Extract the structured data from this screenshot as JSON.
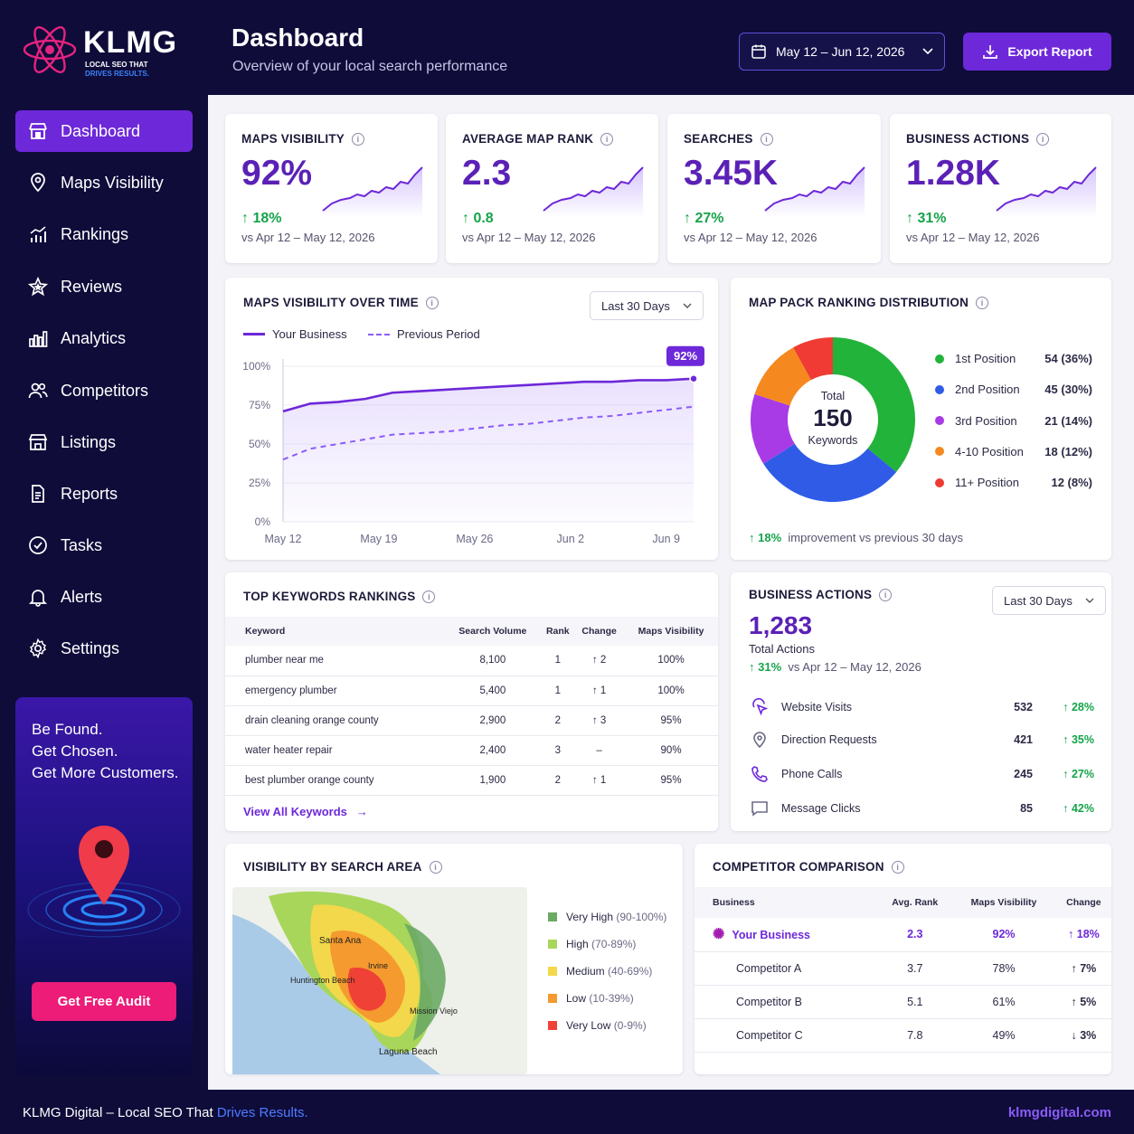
{
  "brand": {
    "name": "KLMG",
    "tag1": "LOCAL SEO THAT",
    "tag2": "DRIVES RESULTS."
  },
  "header": {
    "title": "Dashboard",
    "subtitle": "Overview of your local search performance",
    "date_range": "May 12 – Jun 12, 2026",
    "export_label": "Export Report"
  },
  "sidebar": {
    "items": [
      {
        "label": "Dashboard",
        "icon": "dashboard-icon"
      },
      {
        "label": "Maps Visibility",
        "icon": "map-pin-icon"
      },
      {
        "label": "Rankings",
        "icon": "rankings-icon"
      },
      {
        "label": "Reviews",
        "icon": "star-icon"
      },
      {
        "label": "Analytics",
        "icon": "analytics-icon"
      },
      {
        "label": "Competitors",
        "icon": "users-icon"
      },
      {
        "label": "Listings",
        "icon": "store-icon"
      },
      {
        "label": "Reports",
        "icon": "document-icon"
      },
      {
        "label": "Tasks",
        "icon": "check-circle-icon"
      },
      {
        "label": "Alerts",
        "icon": "bell-icon"
      },
      {
        "label": "Settings",
        "icon": "gear-icon"
      }
    ],
    "promo": {
      "line1": "Be Found.",
      "line2": "Get Chosen.",
      "line3": "Get More Customers.",
      "cta": "Get Free Audit"
    }
  },
  "kpis": [
    {
      "label": "MAPS VISIBILITY",
      "value": "92%",
      "change": "18%",
      "compare": "vs Apr 12 – May 12, 2026"
    },
    {
      "label": "AVERAGE MAP RANK",
      "value": "2.3",
      "change": "0.8",
      "compare": "vs Apr 12 – May 12, 2026"
    },
    {
      "label": "SEARCHES",
      "value": "3.45K",
      "change": "27%",
      "compare": "vs Apr 12 – May 12, 2026"
    },
    {
      "label": "BUSINESS ACTIONS",
      "value": "1.28K",
      "change": "31%",
      "compare": "vs Apr 12 – May 12, 2026"
    }
  ],
  "visibility_chart": {
    "title": "MAPS VISIBILITY OVER TIME",
    "range": "Last 30 Days",
    "legend_current": "Your Business",
    "legend_previous": "Previous Period",
    "end_label": "92%"
  },
  "chart_data": {
    "type": "line",
    "x": [
      "May 12",
      "May 14",
      "May 16",
      "May 18",
      "May 20",
      "May 22",
      "May 24",
      "May 26",
      "May 28",
      "May 30",
      "Jun 1",
      "Jun 3",
      "Jun 5",
      "Jun 7",
      "Jun 9",
      "Jun 11"
    ],
    "x_ticks": [
      "May 12",
      "May 19",
      "May 26",
      "Jun 2",
      "Jun 9"
    ],
    "y_ticks": [
      "0%",
      "25%",
      "50%",
      "75%",
      "100%"
    ],
    "ylim": [
      0,
      100
    ],
    "series": [
      {
        "name": "Your Business",
        "values": [
          71,
          76,
          77,
          79,
          83,
          84,
          85,
          86,
          87,
          88,
          89,
          90,
          90,
          91,
          91,
          92
        ]
      },
      {
        "name": "Previous Period",
        "values": [
          40,
          47,
          50,
          53,
          56,
          57,
          58,
          60,
          62,
          63,
          65,
          67,
          68,
          70,
          72,
          74
        ]
      }
    ]
  },
  "distribution": {
    "title": "MAP PACK RANKING DISTRIBUTION",
    "total_label": "Total",
    "total": "150",
    "total_unit": "Keywords",
    "items": [
      {
        "label": "1st Position",
        "value": "54 (36%)",
        "count": 54,
        "color": "#22b33a"
      },
      {
        "label": "2nd Position",
        "value": "45 (30%)",
        "count": 45,
        "color": "#2f5be7"
      },
      {
        "label": "3rd Position",
        "value": "21 (14%)",
        "count": 21,
        "color": "#a83be6"
      },
      {
        "label": "4-10 Position",
        "value": "18 (12%)",
        "count": 18,
        "color": "#f5891f"
      },
      {
        "label": "11+ Position",
        "value": "12 (8%)",
        "count": 12,
        "color": "#ef3b33"
      }
    ],
    "improvement": "18%",
    "improvement_text": "improvement vs previous 30 days"
  },
  "keywords": {
    "title": "TOP KEYWORDS RANKINGS",
    "headers": [
      "Keyword",
      "Search Volume",
      "Rank",
      "Change",
      "Maps Visibility"
    ],
    "rows": [
      {
        "keyword": "plumber near me",
        "volume": "8,100",
        "rank": "1",
        "change": "↑ 2",
        "visibility": "100%"
      },
      {
        "keyword": "emergency plumber",
        "volume": "5,400",
        "rank": "1",
        "change": "↑ 1",
        "visibility": "100%"
      },
      {
        "keyword": "drain cleaning orange county",
        "volume": "2,900",
        "rank": "2",
        "change": "↑ 3",
        "visibility": "95%"
      },
      {
        "keyword": "water heater repair",
        "volume": "2,400",
        "rank": "3",
        "change": "–",
        "visibility": "90%"
      },
      {
        "keyword": "best plumber orange county",
        "volume": "1,900",
        "rank": "2",
        "change": "↑ 1",
        "visibility": "95%"
      }
    ],
    "view_all": "View All Keywords"
  },
  "business_actions": {
    "title": "BUSINESS ACTIONS",
    "range": "Last 30 Days",
    "total": "1,283",
    "total_label": "Total Actions",
    "change": "31%",
    "compare": "vs Apr 12 – May 12, 2026",
    "rows": [
      {
        "label": "Website Visits",
        "value": "532",
        "change": "28%",
        "icon": "cursor-click-icon"
      },
      {
        "label": "Direction Requests",
        "value": "421",
        "change": "35%",
        "icon": "map-pin-icon"
      },
      {
        "label": "Phone Calls",
        "value": "245",
        "change": "27%",
        "icon": "phone-icon"
      },
      {
        "label": "Message Clicks",
        "value": "85",
        "change": "42%",
        "icon": "message-icon"
      }
    ]
  },
  "search_area": {
    "title": "VISIBILITY BY SEARCH AREA",
    "map_labels": [
      "Santa Ana",
      "Huntington Beach",
      "Irvine",
      "Laguna Beach",
      "Mission Viejo"
    ],
    "legend": [
      {
        "label": "Very High",
        "range": "(90-100%)",
        "color": "#6aaa64"
      },
      {
        "label": "High",
        "range": "(70-89%)",
        "color": "#a8d65a"
      },
      {
        "label": "Medium",
        "range": "(40-69%)",
        "color": "#f2d84a"
      },
      {
        "label": "Low",
        "range": "(10-39%)",
        "color": "#f59a2e"
      },
      {
        "label": "Very Low",
        "range": "(0-9%)",
        "color": "#ef4136"
      }
    ]
  },
  "competitors": {
    "title": "COMPETITOR COMPARISON",
    "headers": [
      "Business",
      "Avg. Rank",
      "Maps Visibility",
      "Change"
    ],
    "rows": [
      {
        "name": "Your Business",
        "rank": "2.3",
        "visibility": "92%",
        "change": "↑ 18%",
        "dir": "up"
      },
      {
        "name": "Competitor A",
        "rank": "3.7",
        "visibility": "78%",
        "change": "↑ 7%",
        "dir": "up"
      },
      {
        "name": "Competitor B",
        "rank": "5.1",
        "visibility": "61%",
        "change": "↑ 5%",
        "dir": "up"
      },
      {
        "name": "Competitor C",
        "rank": "7.8",
        "visibility": "49%",
        "change": "↓ 3%",
        "dir": "down"
      }
    ]
  },
  "footer": {
    "left_prefix": "KLMG Digital – Local SEO That ",
    "left_highlight": "Drives Results.",
    "right": "klmgdigital.com"
  },
  "colors": {
    "accent": "#6d28d9",
    "navy": "#0f0c3a",
    "value_purple": "#5b21b6",
    "up": "#16a34a",
    "down": "#dc2626",
    "cta": "#ec1c78"
  }
}
